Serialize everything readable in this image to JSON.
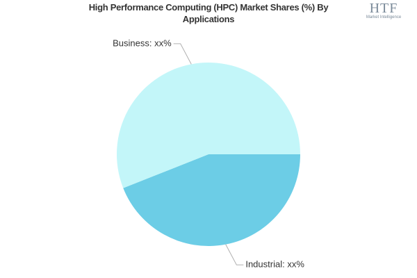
{
  "chart_data": {
    "type": "pie",
    "title": "High Performance Computing (HPC) Market Shares (%) By Applications",
    "labels": [
      "Industrial: xx%",
      "Business: xx%"
    ],
    "values": [
      44,
      56
    ],
    "colors": [
      "#6ccde6",
      "#c3f6f9"
    ]
  },
  "logo": {
    "name": "HTF",
    "tagline": "Market Intelligence"
  }
}
